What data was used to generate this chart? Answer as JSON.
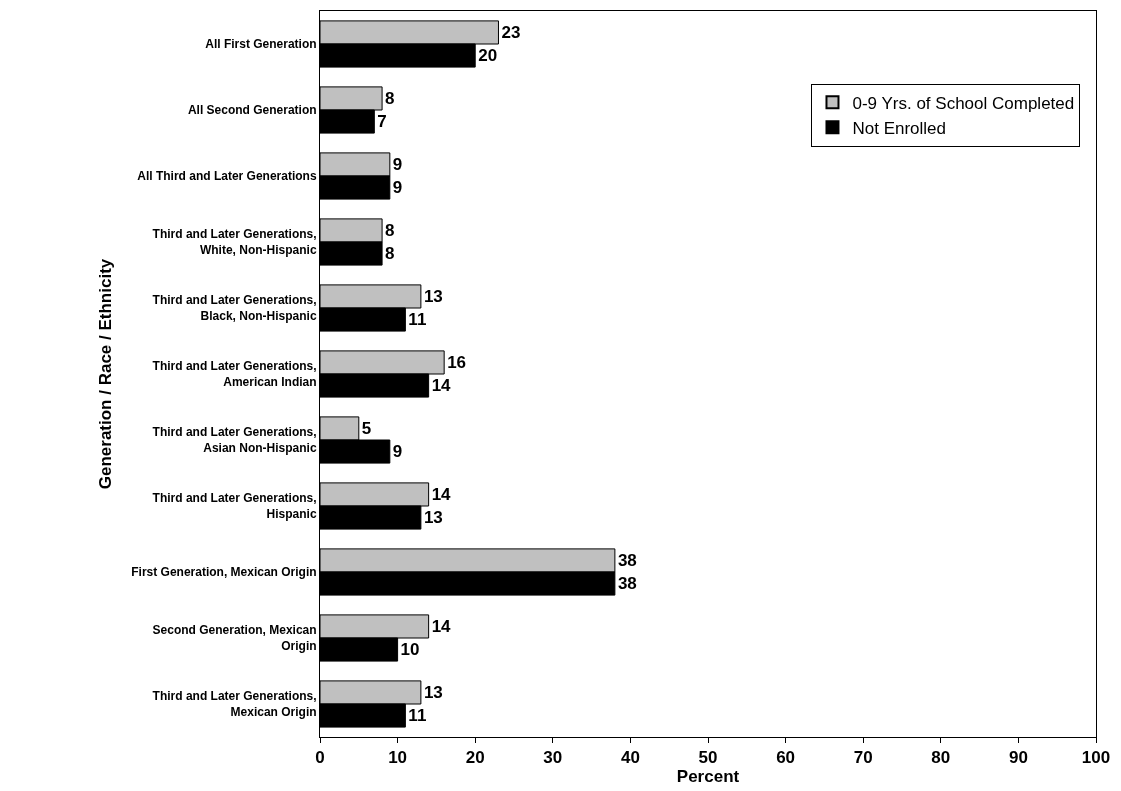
{
  "chart_data": {
    "type": "bar",
    "orientation": "horizontal",
    "xlabel": "Percent",
    "ylabel": "Generation / Race / Ethnicity",
    "categories": [
      "All First Generation",
      "All Second Generation",
      "All Third and Later Generations",
      "Third and Later Generations,\nWhite, Non-Hispanic",
      "Third and Later Generations,\nBlack, Non-Hispanic",
      "Third and Later Generations,\nAmerican Indian",
      "Third and Later Generations,\nAsian Non-Hispanic",
      "Third and Later Generations,\nHispanic",
      "First Generation, Mexican Origin",
      "Second Generation, Mexican\nOrigin",
      "Third and Later Generations,\nMexican Origin"
    ],
    "series": [
      {
        "name": "0-9 Yrs. of School Completed",
        "color": "#c0c0c0",
        "values": [
          23,
          8,
          9,
          8,
          13,
          16,
          5,
          14,
          38,
          14,
          13
        ]
      },
      {
        "name": "Not Enrolled",
        "color": "#000000",
        "values": [
          20,
          7,
          9,
          8,
          11,
          14,
          9,
          13,
          38,
          10,
          11
        ]
      }
    ],
    "xlim": [
      0,
      100
    ],
    "xticks": [
      0,
      10,
      20,
      30,
      40,
      50,
      60,
      70,
      80,
      90,
      100
    ],
    "data_labels": true,
    "legend": "top right"
  }
}
